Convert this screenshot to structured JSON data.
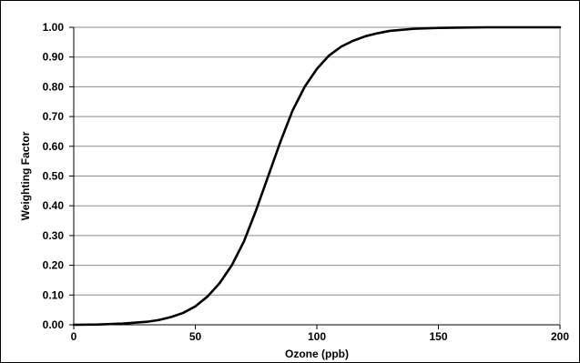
{
  "chart_data": {
    "type": "line",
    "xlabel": "Ozone (ppb)",
    "ylabel": "Weighting Factor",
    "xlim": [
      0,
      200
    ],
    "ylim": [
      0,
      1
    ],
    "x_ticks": [
      "0",
      "50",
      "100",
      "150",
      "200"
    ],
    "y_ticks": [
      "0.00",
      "0.10",
      "0.20",
      "0.30",
      "0.40",
      "0.50",
      "0.60",
      "0.70",
      "0.80",
      "0.90",
      "1.00"
    ],
    "grid": "horizontal",
    "line_color": "#000000",
    "series": [
      {
        "x": [
          0,
          10,
          20,
          30,
          35,
          40,
          45,
          50,
          55,
          60,
          65,
          70,
          75,
          80,
          85,
          90,
          95,
          100,
          105,
          110,
          115,
          120,
          125,
          130,
          140,
          150,
          160,
          170,
          180,
          190,
          200
        ],
        "values": [
          0.0,
          0.001,
          0.004,
          0.01,
          0.016,
          0.026,
          0.04,
          0.062,
          0.095,
          0.14,
          0.2,
          0.28,
          0.385,
          0.5,
          0.615,
          0.72,
          0.8,
          0.86,
          0.905,
          0.935,
          0.955,
          0.97,
          0.98,
          0.988,
          0.995,
          0.998,
          0.999,
          1.0,
          1.0,
          1.0,
          1.0
        ]
      }
    ]
  }
}
